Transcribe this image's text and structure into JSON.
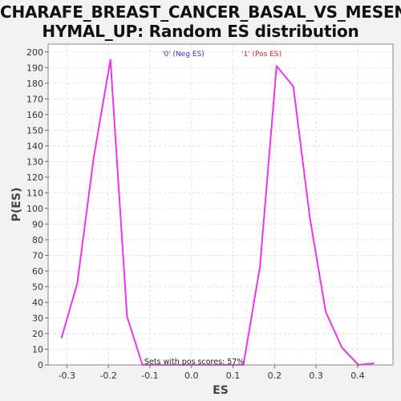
{
  "title_lines": [
    "CHARAFE_BREAST_CANCER_BASAL_VS_MESENC",
    "HYMAL_UP: Random ES distribution"
  ],
  "colors": {
    "line": "#ee33ee",
    "neg_legend": "#3333cc",
    "pos_legend": "#dd2222",
    "background": "#f2f2f2",
    "plot_bg": "#ffffff",
    "grid": "#d9d9d9"
  },
  "chart_data": {
    "type": "line",
    "title": "CHARAFE_BREAST_CANCER_BASAL_VS_MESENCHYMAL_UP: Random ES distribution",
    "xlabel": "ES",
    "ylabel": "P(ES)",
    "xlim": [
      -0.345,
      0.485
    ],
    "ylim": [
      0,
      205
    ],
    "x_ticks": [
      -0.3,
      -0.2,
      -0.1,
      0.0,
      0.1,
      0.2,
      0.3,
      0.4
    ],
    "x_tick_labels": [
      "-0.3",
      "-0.2",
      "-0.1",
      "0.0",
      "0.1",
      "0.2",
      "0.3",
      "0.4"
    ],
    "y_ticks": [
      0,
      10,
      20,
      30,
      40,
      50,
      60,
      70,
      80,
      90,
      100,
      110,
      120,
      130,
      140,
      150,
      160,
      170,
      180,
      190,
      200
    ],
    "grid": true,
    "legend": [
      {
        "label": "'0' (Neg ES)",
        "color": "#3333cc"
      },
      {
        "label": "'1' (Pos ES)",
        "color": "#dd2222"
      }
    ],
    "annotation": "Sets with pos scores: 57%",
    "series": [
      {
        "color": "#ee33ee",
        "x": [
          -0.313,
          -0.275,
          -0.235,
          -0.195,
          -0.155,
          -0.118,
          -0.08,
          0.1,
          0.125,
          0.165,
          0.205,
          0.245,
          0.285,
          0.323,
          0.362,
          0.402,
          0.44
        ],
        "y": [
          17,
          52,
          133,
          195,
          31,
          0,
          0,
          0,
          0,
          63,
          191,
          178,
          94,
          34,
          11,
          0,
          1
        ]
      }
    ]
  }
}
